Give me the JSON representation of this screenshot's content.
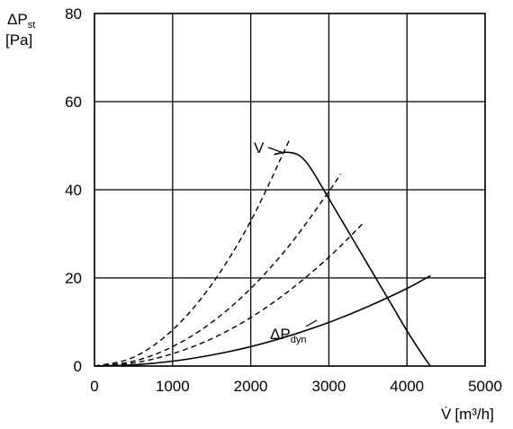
{
  "chart_data": {
    "type": "line",
    "xlabel_prefix": "V̇",
    "xlabel_unit": "[m³/h]",
    "ylabel_main": "ΔP",
    "ylabel_sub": "st",
    "ylabel_unit": "[Pa]",
    "xlim": [
      0,
      5000
    ],
    "ylim": [
      0,
      80
    ],
    "xticks": [
      0,
      1000,
      2000,
      3000,
      4000,
      5000
    ],
    "yticks": [
      0,
      20,
      40,
      60,
      80
    ],
    "grid": true,
    "series": [
      {
        "name": "V",
        "style": "solid",
        "x": [
          2300,
          2450,
          2600,
          2700,
          2800,
          2900,
          3000,
          3200,
          3400,
          3600,
          3800,
          4000,
          4200,
          4300
        ],
        "y": [
          48,
          48.5,
          48,
          46.5,
          44,
          41,
          38,
          32,
          26,
          20,
          14,
          8,
          2.5,
          0
        ]
      },
      {
        "name": "ΔP_dyn",
        "label_main": "ΔP",
        "label_sub": "dyn",
        "style": "solid",
        "x": [
          0,
          500,
          1000,
          1500,
          2000,
          2500,
          3000,
          3500,
          4000,
          4300
        ],
        "y": [
          0,
          0.27,
          1.1,
          2.5,
          4.4,
          6.9,
          9.9,
          13.5,
          17.6,
          20.5
        ]
      },
      {
        "style": "dashed",
        "x": [
          0,
          500,
          1000,
          1500,
          2000,
          2500
        ],
        "y": [
          0,
          2.0,
          8.2,
          18.5,
          32.9,
          51.5
        ]
      },
      {
        "style": "dashed",
        "x": [
          0,
          500,
          1000,
          1500,
          2000,
          2500,
          3000,
          3150
        ],
        "y": [
          0,
          1.1,
          4.4,
          9.9,
          17.6,
          27.5,
          39.6,
          43.6
        ]
      },
      {
        "style": "dashed",
        "x": [
          0,
          500,
          1000,
          1500,
          2000,
          2500,
          3000,
          3450
        ],
        "y": [
          0,
          0.7,
          2.8,
          6.2,
          11.0,
          17.2,
          24.7,
          32.6
        ]
      }
    ]
  }
}
